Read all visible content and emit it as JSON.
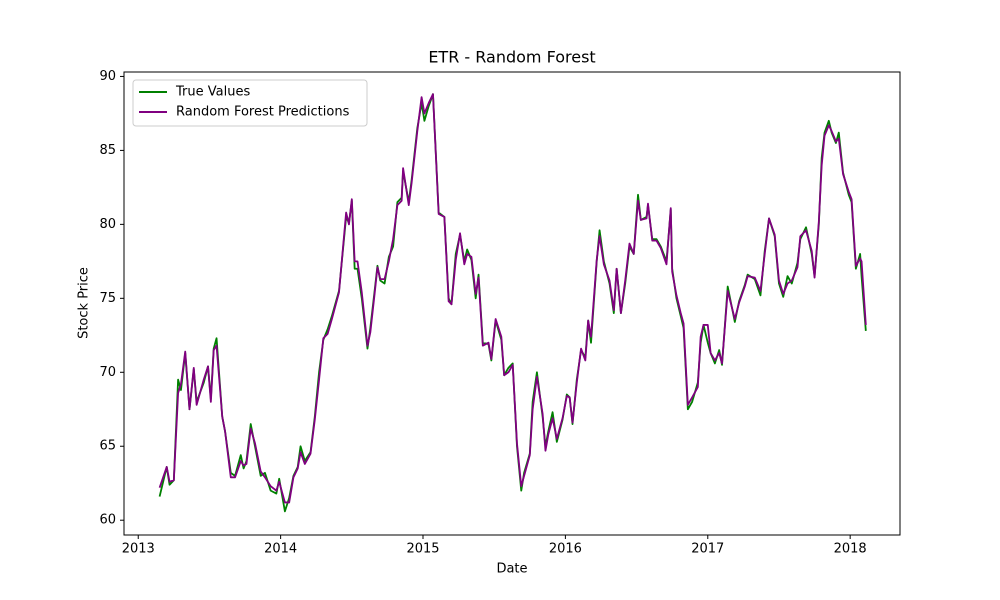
{
  "chart_data": {
    "type": "line",
    "title": "ETR - Random Forest",
    "x_label": "Date",
    "y_label": "Stock Price",
    "x": [
      2013.15,
      2013.2,
      2013.22,
      2013.25,
      2013.28,
      2013.3,
      2013.33,
      2013.36,
      2013.39,
      2013.41,
      2013.46,
      2013.49,
      2013.51,
      2013.53,
      2013.55,
      2013.59,
      2013.61,
      2013.65,
      2013.68,
      2013.72,
      2013.74,
      2013.76,
      2013.79,
      2013.82,
      2013.86,
      2013.89,
      2013.93,
      2013.97,
      2013.99,
      2014.03,
      2014.06,
      2014.09,
      2014.12,
      2014.14,
      2014.17,
      2014.21,
      2014.24,
      2014.27,
      2014.3,
      2014.33,
      2014.36,
      2014.41,
      2014.46,
      2014.48,
      2014.5,
      2014.52,
      2014.54,
      2014.57,
      2014.61,
      2014.63,
      2014.66,
      2014.68,
      2014.7,
      2014.73,
      2014.76,
      2014.79,
      2014.82,
      2014.85,
      2014.86,
      2014.9,
      2014.92,
      2014.96,
      2014.99,
      2015.01,
      2015.04,
      2015.07,
      2015.11,
      2015.15,
      2015.18,
      2015.2,
      2015.23,
      2015.26,
      2015.29,
      2015.31,
      2015.34,
      2015.37,
      2015.39,
      2015.42,
      2015.46,
      2015.48,
      2015.51,
      2015.55,
      2015.57,
      2015.6,
      2015.63,
      2015.66,
      2015.69,
      2015.71,
      2015.75,
      2015.77,
      2015.8,
      2015.84,
      2015.86,
      2015.88,
      2015.91,
      2015.94,
      2015.98,
      2016.01,
      2016.03,
      2016.05,
      2016.08,
      2016.11,
      2016.14,
      2016.16,
      2016.18,
      2016.22,
      2016.24,
      2016.27,
      2016.31,
      2016.34,
      2016.36,
      2016.39,
      2016.42,
      2016.45,
      2016.48,
      2016.51,
      2016.53,
      2016.57,
      2016.58,
      2016.61,
      2016.64,
      2016.67,
      2016.71,
      2016.74,
      2016.75,
      2016.78,
      2016.81,
      2016.83,
      2016.86,
      2016.89,
      2016.93,
      2016.95,
      2016.97,
      2017.0,
      2017.02,
      2017.05,
      2017.08,
      2017.1,
      2017.14,
      2017.19,
      2017.22,
      2017.26,
      2017.28,
      2017.33,
      2017.37,
      2017.4,
      2017.43,
      2017.47,
      2017.5,
      2017.53,
      2017.56,
      2017.59,
      2017.63,
      2017.65,
      2017.69,
      2017.73,
      2017.75,
      2017.78,
      2017.8,
      2017.82,
      2017.85,
      2017.87,
      2017.9,
      2017.92,
      2017.95,
      2017.99,
      2018.01,
      2018.04,
      2018.07,
      2018.08,
      2018.11
    ],
    "series": [
      {
        "name": "True Values",
        "color": "#008000",
        "values": [
          61.6,
          63.6,
          62.4,
          62.7,
          69.5,
          68.8,
          71.3,
          67.5,
          70.2,
          68.0,
          69.3,
          70.4,
          68.2,
          71.6,
          72.3,
          67.0,
          66.0,
          63.2,
          63.0,
          64.4,
          63.5,
          64.0,
          66.5,
          65.0,
          63.0,
          63.2,
          62.0,
          61.8,
          62.8,
          60.6,
          61.5,
          63.0,
          63.6,
          65.0,
          64.0,
          64.6,
          67.0,
          70.0,
          72.2,
          72.9,
          73.8,
          75.5,
          80.5,
          80.1,
          81.6,
          77.0,
          77.0,
          75.0,
          71.6,
          73.0,
          75.5,
          77.2,
          76.2,
          76.0,
          77.8,
          78.5,
          81.5,
          81.8,
          83.6,
          81.5,
          83.0,
          86.5,
          88.2,
          87.0,
          88.0,
          88.8,
          80.8,
          80.5,
          75.0,
          74.6,
          78.0,
          79.3,
          77.5,
          78.3,
          77.6,
          75.0,
          76.6,
          72.0,
          71.9,
          70.8,
          73.5,
          72.2,
          69.8,
          70.3,
          70.6,
          65.0,
          62.0,
          63.2,
          64.5,
          68.0,
          70.0,
          67.0,
          65.0,
          66.0,
          67.3,
          65.3,
          66.8,
          68.5,
          68.3,
          66.5,
          69.5,
          71.5,
          71.0,
          73.5,
          72.0,
          77.5,
          79.6,
          77.5,
          76.0,
          74.0,
          77.0,
          74.0,
          76.0,
          78.5,
          78.0,
          82.0,
          80.3,
          80.5,
          81.3,
          79.0,
          79.0,
          78.5,
          77.5,
          81.0,
          77.0,
          75.0,
          73.8,
          73.0,
          67.5,
          68.0,
          69.3,
          72.0,
          73.2,
          72.0,
          71.3,
          70.6,
          71.5,
          70.5,
          75.8,
          73.4,
          74.8,
          75.9,
          76.6,
          76.3,
          75.2,
          78.2,
          80.4,
          79.2,
          76.0,
          75.1,
          76.5,
          76.0,
          77.4,
          79.0,
          79.8,
          78.0,
          76.5,
          80.0,
          84.5,
          86.2,
          87.0,
          86.2,
          85.5,
          86.2,
          83.5,
          82.0,
          81.5,
          77.0,
          78.0,
          76.5,
          72.8
        ]
      },
      {
        "name": "Random Forest Predictions",
        "color": "#800080",
        "values": [
          62.2,
          63.6,
          62.6,
          62.7,
          68.6,
          69.2,
          71.4,
          67.5,
          70.3,
          67.8,
          69.5,
          70.4,
          68.0,
          71.5,
          71.8,
          67.0,
          66.0,
          62.9,
          62.9,
          64.0,
          63.7,
          63.8,
          66.2,
          65.2,
          63.3,
          62.9,
          62.3,
          62.0,
          62.6,
          61.2,
          61.2,
          62.9,
          63.5,
          64.6,
          63.8,
          64.5,
          66.8,
          69.5,
          72.3,
          72.6,
          73.6,
          75.4,
          80.8,
          80.0,
          81.7,
          77.5,
          77.5,
          75.4,
          71.8,
          72.7,
          75.3,
          77.1,
          76.3,
          76.3,
          77.5,
          79.0,
          81.3,
          81.6,
          83.8,
          81.3,
          82.8,
          86.3,
          88.6,
          87.5,
          88.2,
          88.8,
          80.7,
          80.5,
          74.8,
          74.6,
          77.6,
          79.4,
          77.3,
          78.0,
          77.8,
          75.3,
          76.4,
          71.8,
          72.0,
          70.9,
          73.6,
          72.4,
          69.8,
          70.0,
          70.5,
          65.2,
          62.3,
          63.0,
          64.4,
          67.5,
          69.7,
          67.2,
          64.7,
          65.8,
          66.9,
          65.5,
          66.9,
          68.4,
          68.3,
          66.6,
          69.3,
          71.6,
          70.8,
          73.5,
          72.4,
          77.6,
          79.2,
          77.3,
          76.2,
          74.2,
          77.0,
          74.0,
          76.2,
          78.7,
          78.0,
          81.6,
          80.3,
          80.4,
          81.4,
          78.9,
          78.9,
          78.4,
          77.3,
          81.1,
          76.8,
          75.2,
          74.0,
          73.3,
          67.8,
          68.3,
          69.0,
          72.4,
          73.2,
          73.2,
          71.3,
          70.8,
          71.3,
          70.6,
          75.5,
          73.6,
          74.7,
          75.8,
          76.5,
          76.4,
          75.5,
          78.0,
          80.4,
          79.3,
          76.2,
          75.3,
          76.0,
          76.2,
          77.1,
          79.2,
          79.6,
          78.2,
          76.4,
          80.2,
          84.0,
          86.0,
          86.7,
          86.3,
          85.6,
          85.8,
          83.4,
          82.2,
          81.7,
          77.2,
          77.7,
          77.5,
          73.2
        ]
      }
    ],
    "xlim": [
      2012.9,
      2018.35
    ],
    "xticks": [
      2013,
      2014,
      2015,
      2016,
      2017,
      2018
    ],
    "ylim": [
      59.0,
      90.3
    ],
    "yticks": [
      60,
      65,
      70,
      75,
      80,
      85,
      90
    ],
    "legend": "upper left",
    "grid": false
  }
}
